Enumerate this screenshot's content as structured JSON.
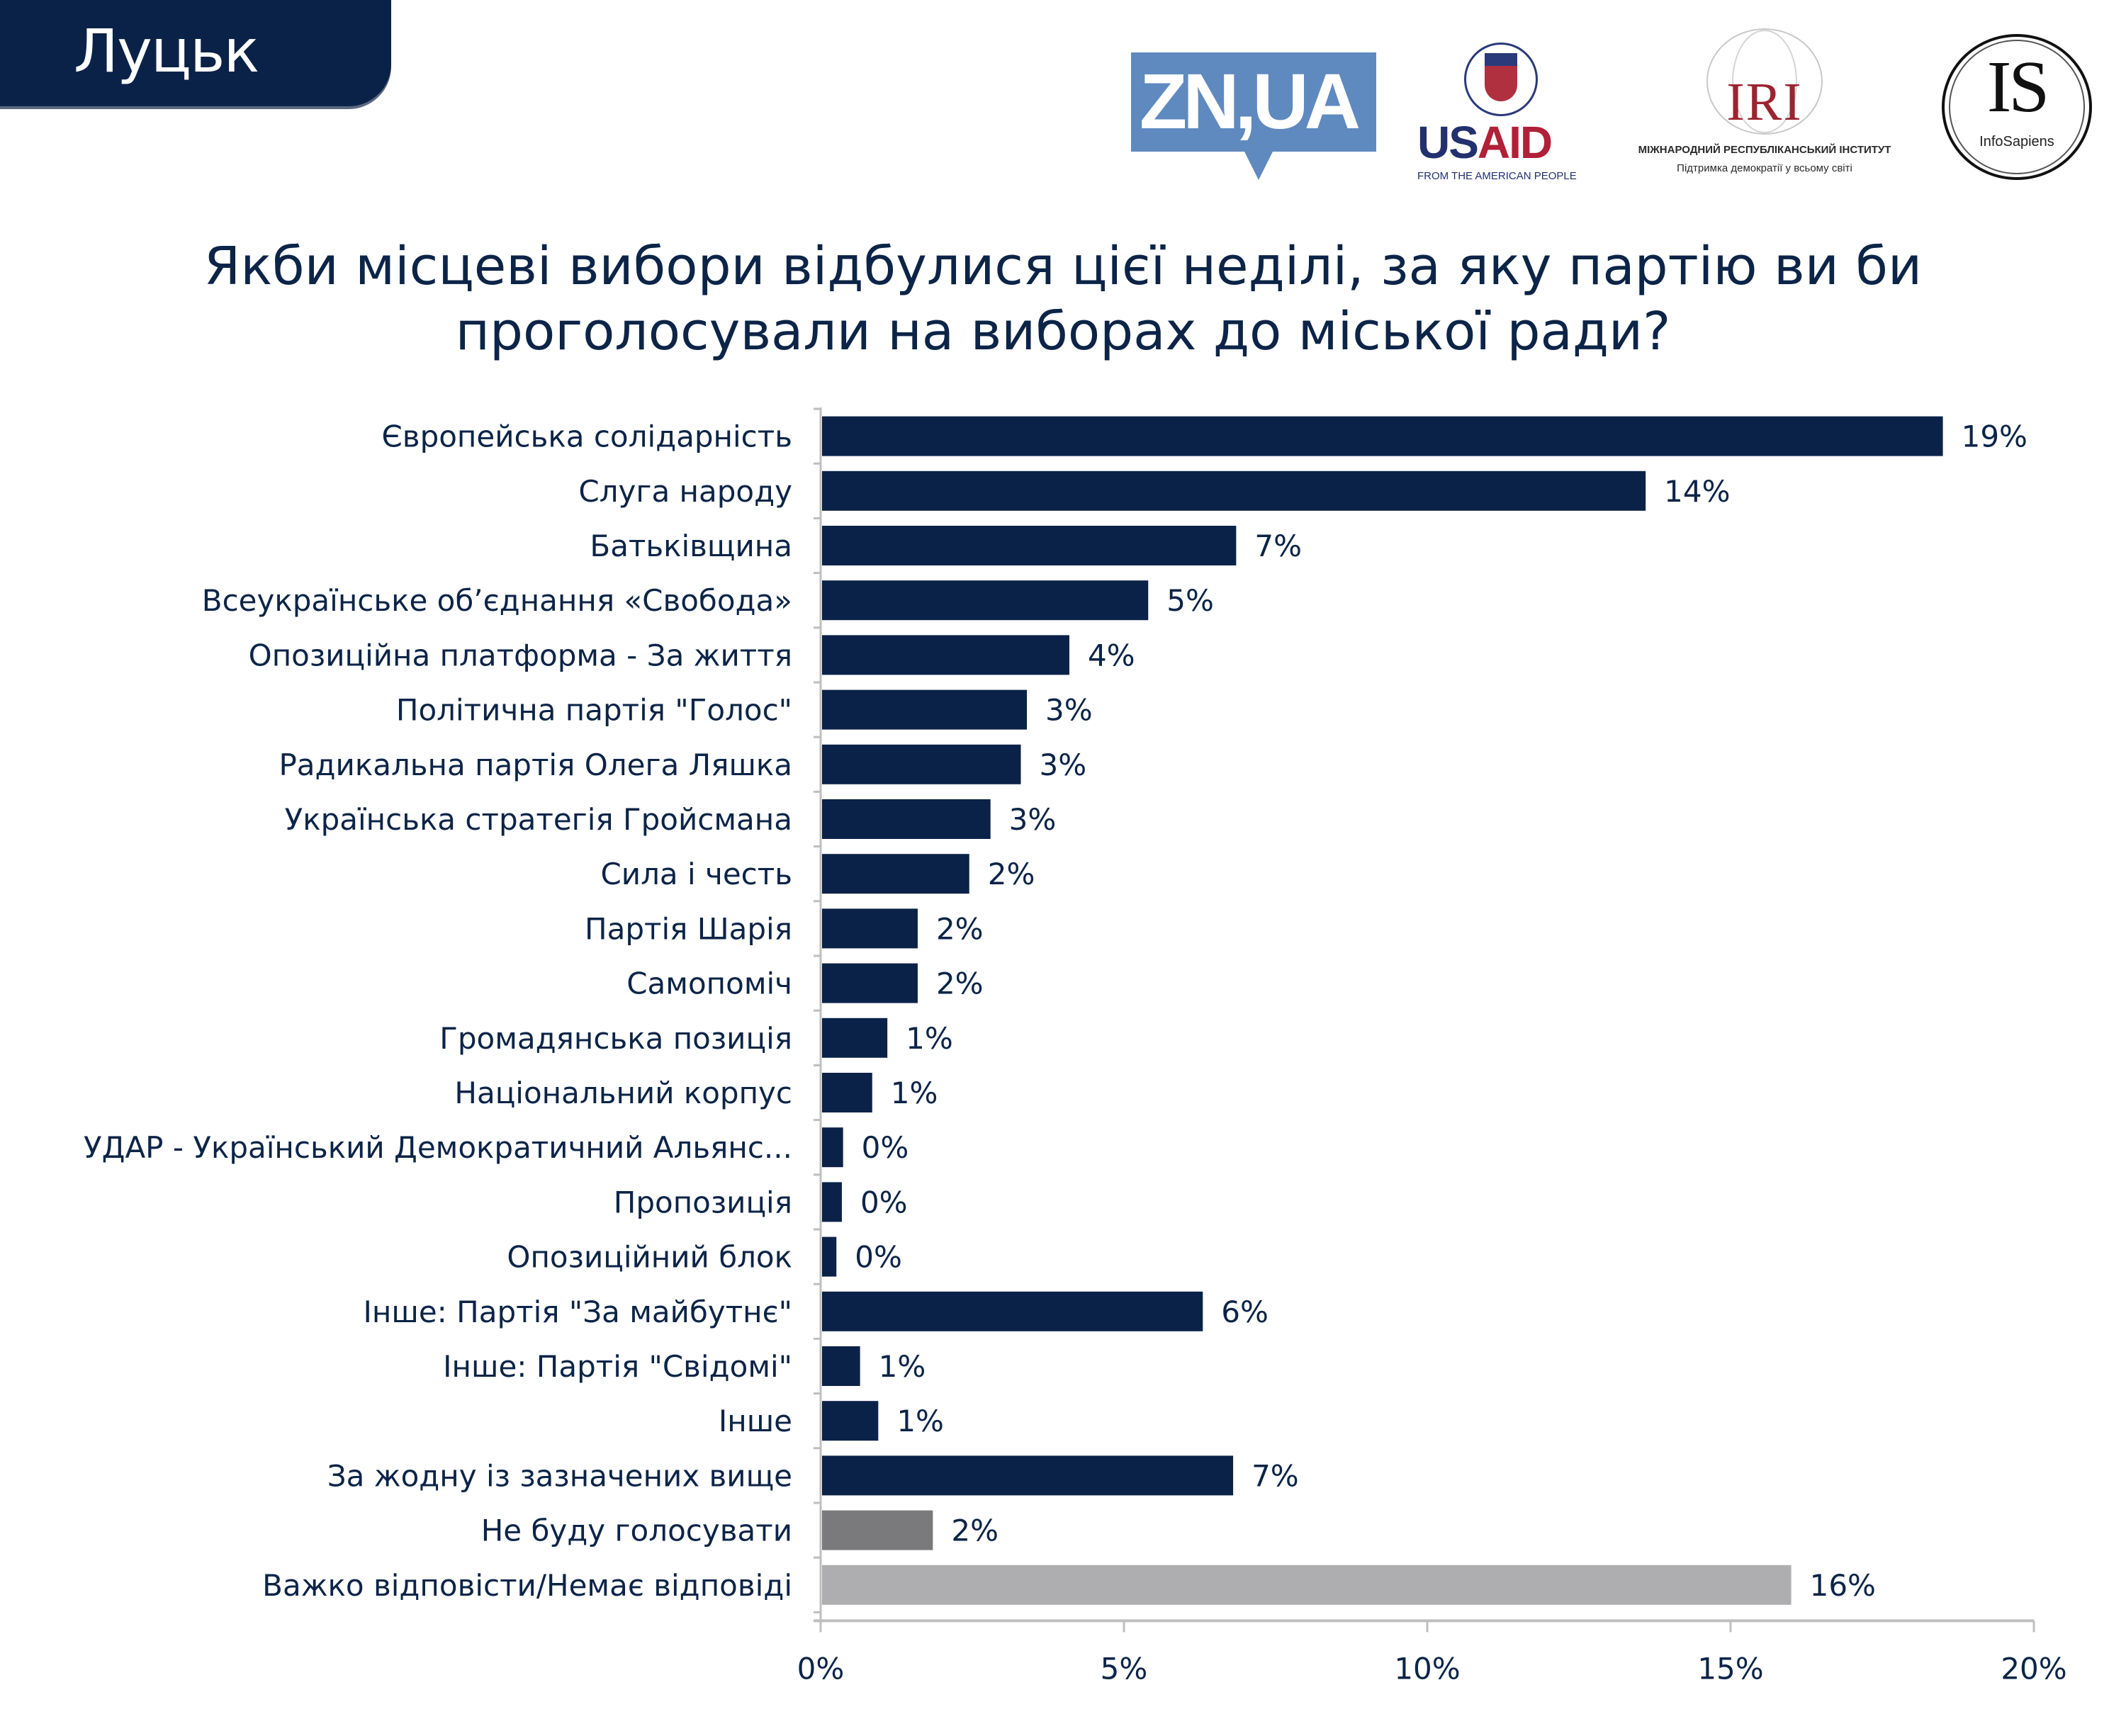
{
  "header": {
    "city": "Луцьк",
    "logos": {
      "zn": "ZN,UA",
      "usaid": {
        "us": "US",
        "aid": "AID",
        "tagline": "FROM THE AMERICAN PEOPLE"
      },
      "iri": {
        "name": "IRI",
        "line1": "МІЖНАРОДНИЙ РЕСПУБЛІКАНСЬКИЙ ІНСТИТУТ",
        "line2": "Підтримка демократії у всьому світі"
      },
      "infosapiens": {
        "name": "IS",
        "sub": "InfoSapiens"
      }
    }
  },
  "colors": {
    "primary": "#0b2248",
    "refuse": "#7a7a7c",
    "dont_know": "#aeaeb0",
    "axis": "#bfbfbf"
  },
  "chart_data": {
    "type": "bar",
    "orientation": "horizontal",
    "title": "Якби місцеві вибори відбулися цієї неділі, за яку партію ви би проголосували на виборах до міської ради?",
    "title_lines": [
      "Якби місцеві вибори відбулися цієї неділі, за яку партію ви би",
      "проголосували на виборах до міської ради?"
    ],
    "xlabel": "",
    "ylabel": "",
    "xlim": [
      0,
      20
    ],
    "x_ticks": [
      "0%",
      "5%",
      "10%",
      "15%",
      "20%"
    ],
    "x_tick_values": [
      0,
      5,
      10,
      15,
      20
    ],
    "grid": false,
    "legend": "none",
    "categories": [
      "Європейська солідарність",
      "Слуга народу",
      "Батьківщина",
      "Всеукраїнське об’єднання «Свобода»",
      "Опозиційна платформа - За життя",
      "Політична партія \"Голос\"",
      "Радикальна партія Олега Ляшка",
      "Українська стратегія Гройсмана",
      "Сила і честь",
      "Партія Шарія",
      "Самопоміч",
      "Громадянська позиція",
      "Національний корпус",
      "УДАР - Український Демократичний Альянс...",
      "Пропозиція",
      "Опозиційний блок",
      "Інше: Партія \"За майбутнє\"",
      "Інше: Партія \"Свідомі\"",
      "Інше",
      "За жодну із зазначених вище",
      "Не буду голосувати",
      "Важко відповісти/Немає відповіді"
    ],
    "values": [
      18.5,
      13.6,
      6.85,
      5.4,
      4.1,
      3.4,
      3.3,
      2.8,
      2.45,
      1.6,
      1.6,
      1.1,
      0.85,
      0.37,
      0.35,
      0.26,
      6.3,
      0.65,
      0.95,
      6.8,
      1.85,
      16.0
    ],
    "data_labels": [
      "19%",
      "14%",
      "7%",
      "5%",
      "4%",
      "3%",
      "3%",
      "3%",
      "2%",
      "2%",
      "2%",
      "1%",
      "1%",
      "0%",
      "0%",
      "0%",
      "6%",
      "1%",
      "1%",
      "7%",
      "2%",
      "16%"
    ],
    "bar_color_keys": [
      "primary",
      "primary",
      "primary",
      "primary",
      "primary",
      "primary",
      "primary",
      "primary",
      "primary",
      "primary",
      "primary",
      "primary",
      "primary",
      "primary",
      "primary",
      "primary",
      "primary",
      "primary",
      "primary",
      "primary",
      "refuse",
      "dont_know"
    ]
  }
}
